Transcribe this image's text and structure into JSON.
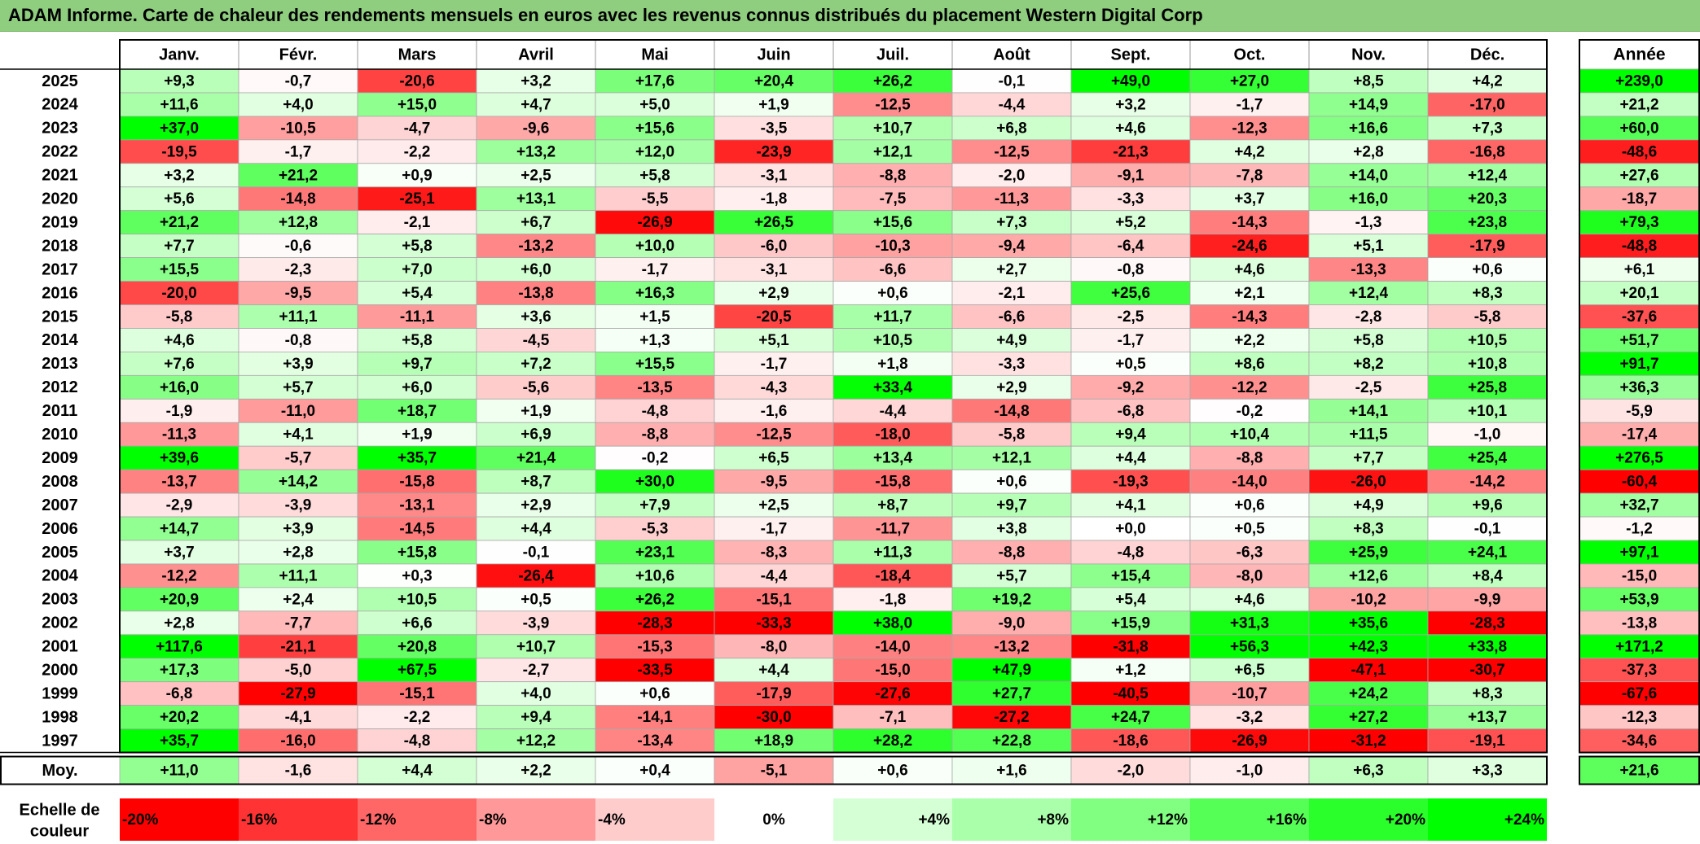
{
  "title": "ADAM Informe. Carte de chaleur des rendements mensuels en euros avec les revenus connus distribués du placement Western Digital Corp",
  "chart_data": {
    "type": "heatmap",
    "months": [
      "Janv.",
      "Févr.",
      "Mars",
      "Avril",
      "Mai",
      "Juin",
      "Juil.",
      "Août",
      "Sept.",
      "Oct.",
      "Nov.",
      "Déc."
    ],
    "year_header": "Année",
    "rows": [
      {
        "year": "2025",
        "values": [
          9.3,
          -0.7,
          -20.6,
          3.2,
          17.6,
          20.4,
          26.2,
          -0.1,
          49.0,
          27.0,
          8.5,
          4.2
        ],
        "annual": 239.0
      },
      {
        "year": "2024",
        "values": [
          11.6,
          4.0,
          15.0,
          4.7,
          5.0,
          1.9,
          -12.5,
          -4.4,
          3.2,
          -1.7,
          14.9,
          -17.0
        ],
        "annual": 21.2
      },
      {
        "year": "2023",
        "values": [
          37.0,
          -10.5,
          -4.7,
          -9.6,
          15.6,
          -3.5,
          10.7,
          6.8,
          4.6,
          -12.3,
          16.6,
          7.3
        ],
        "annual": 60.0
      },
      {
        "year": "2022",
        "values": [
          -19.5,
          -1.7,
          -2.2,
          13.2,
          12.0,
          -23.9,
          12.1,
          -12.5,
          -21.3,
          4.2,
          2.8,
          -16.8
        ],
        "annual": -48.6
      },
      {
        "year": "2021",
        "values": [
          3.2,
          21.2,
          0.9,
          2.5,
          5.8,
          -3.1,
          -8.8,
          -2.0,
          -9.1,
          -7.8,
          14.0,
          12.4
        ],
        "annual": 27.6
      },
      {
        "year": "2020",
        "values": [
          5.6,
          -14.8,
          -25.1,
          13.1,
          -5.5,
          -1.8,
          -7.5,
          -11.3,
          -3.3,
          3.7,
          16.0,
          20.3
        ],
        "annual": -18.7
      },
      {
        "year": "2019",
        "values": [
          21.2,
          12.8,
          -2.1,
          6.7,
          -26.9,
          26.5,
          15.6,
          7.3,
          5.2,
          -14.3,
          -1.3,
          23.8
        ],
        "annual": 79.3
      },
      {
        "year": "2018",
        "values": [
          7.7,
          -0.6,
          5.8,
          -13.2,
          10.0,
          -6.0,
          -10.3,
          -9.4,
          -6.4,
          -24.6,
          5.1,
          -17.9
        ],
        "annual": -48.8
      },
      {
        "year": "2017",
        "values": [
          15.5,
          -2.3,
          7.0,
          6.0,
          -1.7,
          -3.1,
          -6.6,
          2.7,
          -0.8,
          4.6,
          -13.3,
          0.6
        ],
        "annual": 6.1
      },
      {
        "year": "2016",
        "values": [
          -20.0,
          -9.5,
          5.4,
          -13.8,
          16.3,
          2.9,
          0.6,
          -2.1,
          25.6,
          2.1,
          12.4,
          8.3
        ],
        "annual": 20.1
      },
      {
        "year": "2015",
        "values": [
          -5.8,
          11.1,
          -11.1,
          3.6,
          1.5,
          -20.5,
          11.7,
          -6.6,
          -2.5,
          -14.3,
          -2.8,
          -5.8
        ],
        "annual": -37.6
      },
      {
        "year": "2014",
        "values": [
          4.6,
          -0.8,
          5.8,
          -4.5,
          1.3,
          5.1,
          10.5,
          4.9,
          -1.7,
          2.2,
          5.8,
          10.5
        ],
        "annual": 51.7
      },
      {
        "year": "2013",
        "values": [
          7.6,
          3.9,
          9.7,
          7.2,
          15.5,
          -1.7,
          1.8,
          -3.3,
          0.5,
          8.6,
          8.2,
          10.8
        ],
        "annual": 91.7
      },
      {
        "year": "2012",
        "values": [
          16.0,
          5.7,
          6.0,
          -5.6,
          -13.5,
          -4.3,
          33.4,
          2.9,
          -9.2,
          -12.2,
          -2.5,
          25.8
        ],
        "annual": 36.3
      },
      {
        "year": "2011",
        "values": [
          -1.9,
          -11.0,
          18.7,
          1.9,
          -4.8,
          -1.6,
          -4.4,
          -14.8,
          -6.8,
          -0.2,
          14.1,
          10.1
        ],
        "annual": -5.9
      },
      {
        "year": "2010",
        "values": [
          -11.3,
          4.1,
          1.9,
          6.9,
          -8.8,
          -12.5,
          -18.0,
          -5.8,
          9.4,
          10.4,
          11.5,
          -1.0
        ],
        "annual": -17.4
      },
      {
        "year": "2009",
        "values": [
          39.6,
          -5.7,
          35.7,
          21.4,
          -0.2,
          6.5,
          13.4,
          12.1,
          4.4,
          -8.8,
          7.7,
          25.4
        ],
        "annual": 276.5
      },
      {
        "year": "2008",
        "values": [
          -13.7,
          14.2,
          -15.8,
          8.7,
          30.0,
          -9.5,
          -15.8,
          0.6,
          -19.3,
          -14.0,
          -26.0,
          -14.2
        ],
        "annual": -60.4
      },
      {
        "year": "2007",
        "values": [
          -2.9,
          -3.9,
          -13.1,
          2.9,
          7.9,
          2.5,
          8.7,
          9.7,
          4.1,
          0.6,
          4.9,
          9.6
        ],
        "annual": 32.7
      },
      {
        "year": "2006",
        "values": [
          14.7,
          3.9,
          -14.5,
          4.4,
          -5.3,
          -1.7,
          -11.7,
          3.8,
          0.0,
          0.5,
          8.3,
          -0.1
        ],
        "annual": -1.2
      },
      {
        "year": "2005",
        "values": [
          3.7,
          2.8,
          15.8,
          -0.1,
          23.1,
          -8.3,
          11.3,
          -8.8,
          -4.8,
          -6.3,
          25.9,
          24.1
        ],
        "annual": 97.1
      },
      {
        "year": "2004",
        "values": [
          -12.2,
          11.1,
          0.3,
          -26.4,
          10.6,
          -4.4,
          -18.4,
          5.7,
          15.4,
          -8.0,
          12.6,
          8.4
        ],
        "annual": -15.0
      },
      {
        "year": "2003",
        "values": [
          20.9,
          2.4,
          10.5,
          0.5,
          26.2,
          -15.1,
          -1.8,
          19.2,
          5.4,
          4.6,
          -10.2,
          -9.9
        ],
        "annual": 53.9
      },
      {
        "year": "2002",
        "values": [
          2.8,
          -7.7,
          6.6,
          -3.9,
          -28.3,
          -33.3,
          38.0,
          -9.0,
          15.9,
          31.3,
          35.6,
          -28.3
        ],
        "annual": -13.8
      },
      {
        "year": "2001",
        "values": [
          117.6,
          -21.1,
          20.8,
          10.7,
          -15.3,
          -8.0,
          -14.0,
          -13.2,
          -31.8,
          56.3,
          42.3,
          33.8
        ],
        "annual": 171.2
      },
      {
        "year": "2000",
        "values": [
          17.3,
          -5.0,
          67.5,
          -2.7,
          -33.5,
          4.4,
          -15.0,
          47.9,
          1.2,
          6.5,
          -47.1,
          -30.7
        ],
        "annual": -37.3
      },
      {
        "year": "1999",
        "values": [
          -6.8,
          -27.9,
          -15.1,
          4.0,
          0.6,
          -17.9,
          -27.6,
          27.7,
          -40.5,
          -10.7,
          24.2,
          8.3
        ],
        "annual": -67.6
      },
      {
        "year": "1998",
        "values": [
          20.2,
          -4.1,
          -2.2,
          9.4,
          -14.1,
          -30.0,
          -7.1,
          -27.2,
          24.7,
          -3.2,
          27.2,
          13.7
        ],
        "annual": -12.3
      },
      {
        "year": "1997",
        "values": [
          35.7,
          -16.0,
          -4.8,
          12.2,
          -13.4,
          18.9,
          28.2,
          22.8,
          -18.6,
          -26.9,
          -31.2,
          -19.1
        ],
        "annual": -34.6
      }
    ],
    "average": {
      "label": "Moy.",
      "values": [
        11.0,
        -1.6,
        4.4,
        2.2,
        0.4,
        -5.1,
        0.6,
        1.6,
        -2.0,
        -1.0,
        6.3,
        3.3
      ],
      "annual": 21.6
    },
    "scale": {
      "label": "Echelle de couleur",
      "steps": [
        "-20%",
        "-16%",
        "-12%",
        "-8%",
        "-4%",
        "0%",
        "+4%",
        "+8%",
        "+12%",
        "+16%",
        "+20%",
        "+24%"
      ],
      "step_values": [
        -20,
        -16,
        -12,
        -8,
        -4,
        0,
        4,
        8,
        12,
        16,
        20,
        24
      ]
    },
    "colors": {
      "negative": "#ff0000",
      "neutral": "#ffffff",
      "positive": "#00ff00",
      "title_bg": "#8fcd7f"
    }
  }
}
